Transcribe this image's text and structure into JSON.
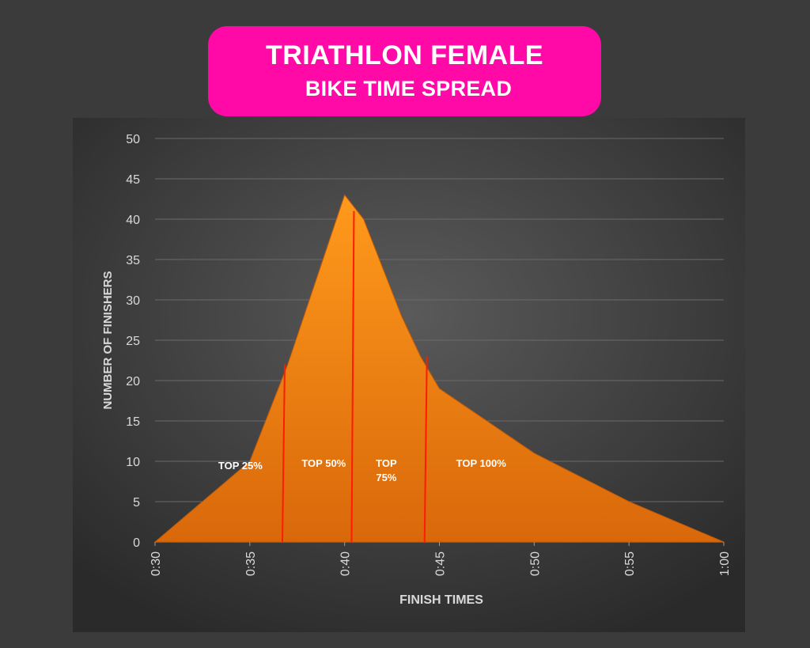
{
  "header": {
    "title_line1": "TRIATHLON FEMALE",
    "title_line2": "BIKE TIME SPREAD"
  },
  "colors": {
    "page_background": "#3b3b3b",
    "title_pill": "#ff0aa6",
    "area_fill_top": "#ff9a1c",
    "area_fill_bottom": "#d9680a",
    "divider_lines": "#ff1a00",
    "gridlines": "#6a6a6a",
    "axis_text": "#d9d9d9"
  },
  "chart_data": {
    "type": "area",
    "title": "TRIATHLON FEMALE BIKE TIME SPREAD",
    "xlabel": "FINISH TIMES",
    "ylabel": "NUMBER OF FINISHERS",
    "x_ticks": [
      "0:30",
      "0:35",
      "0:40",
      "0:45",
      "0:50",
      "0:55",
      "1:00"
    ],
    "xlim_minutes": [
      30,
      60
    ],
    "ylim": [
      0,
      50
    ],
    "y_ticks": [
      0,
      5,
      10,
      15,
      20,
      25,
      30,
      35,
      40,
      45,
      50
    ],
    "grid": true,
    "series": [
      {
        "x_minutes": [
          30,
          35,
          37,
          38,
          39,
          40,
          41,
          42,
          43,
          44,
          45,
          50,
          55,
          60
        ],
        "values": [
          0,
          10,
          22,
          29,
          36,
          43,
          40,
          34,
          28,
          23,
          19,
          11,
          5,
          0
        ]
      }
    ],
    "dividers": [
      {
        "x_minutes": 36.8,
        "height": 22
      },
      {
        "x_minutes": 40.45,
        "height": 41
      },
      {
        "x_minutes": 44.3,
        "height": 23
      }
    ],
    "annotations": [
      {
        "text": "TOP 25%",
        "x_minutes": 34.5,
        "y": 9
      },
      {
        "text": "TOP 50%",
        "x_minutes": 38.9,
        "y": 9.3
      },
      {
        "text": "TOP\n75%",
        "x_minutes": 42.2,
        "y": 9.3
      },
      {
        "text": "TOP 100%",
        "x_minutes": 47.2,
        "y": 9.3
      }
    ]
  }
}
